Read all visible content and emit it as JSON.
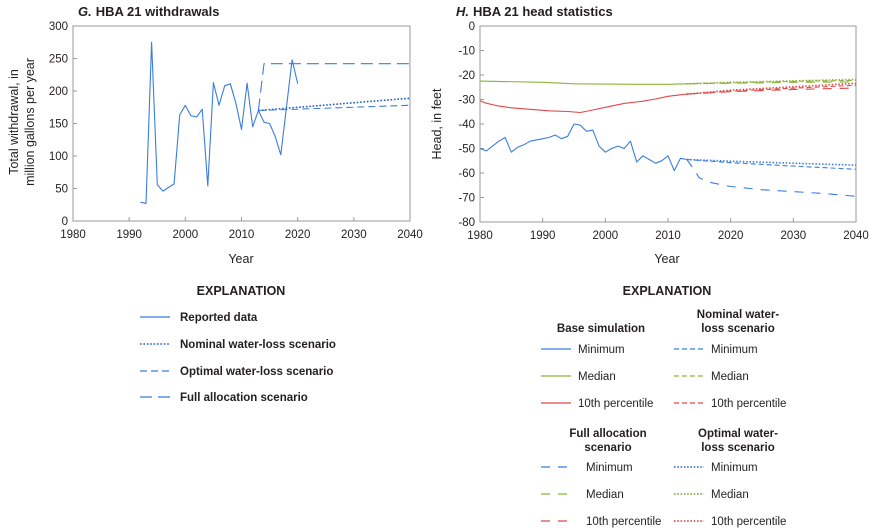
{
  "chart_data": [
    {
      "type": "line",
      "panel_letter": "G.",
      "title": "HBA 21 withdrawals",
      "xlabel": "Year",
      "ylabel_lines": [
        "Total withdrawal, in",
        "million gallons per year"
      ],
      "xlim": [
        1980,
        2040
      ],
      "ylim": [
        0,
        300
      ],
      "x_ticks": [
        1980,
        1990,
        2000,
        2010,
        2020,
        2030,
        2040
      ],
      "y_ticks": [
        0,
        50,
        100,
        150,
        200,
        250,
        300
      ],
      "legend_title": "EXPLANATION",
      "series": [
        {
          "key": "reported",
          "name": "Reported data",
          "color": "#3b7ddd",
          "dash": "",
          "x": [
            1992,
            1993,
            1994,
            1995,
            1996,
            1998,
            1999,
            2000,
            2001,
            2002,
            2003,
            2004,
            2005,
            2006,
            2007,
            2008,
            2009,
            2010,
            2011,
            2012,
            2013,
            2014,
            2015,
            2016,
            2017,
            2019,
            2020
          ],
          "y": [
            29,
            27,
            275,
            56,
            46,
            57,
            163,
            178,
            162,
            160,
            172,
            54,
            213,
            178,
            208,
            211,
            181,
            141,
            212,
            145,
            170,
            152,
            150,
            130,
            102,
            248,
            211
          ]
        },
        {
          "key": "nominal",
          "name": "Nominal water-loss scenario",
          "color": "#1f5fc4",
          "dash": "1.6,1.8",
          "x": [
            2013,
            2040
          ],
          "y": [
            170,
            189
          ]
        },
        {
          "key": "optimal",
          "name": "Optimal water-loss scenario",
          "color": "#3b7ddd",
          "dash": "7,4",
          "x": [
            2013,
            2040
          ],
          "y": [
            170,
            178
          ]
        },
        {
          "key": "full",
          "name": "Full allocation scenario",
          "color": "#3b7ddd",
          "dash": "12,6",
          "x": [
            2013,
            2014,
            2040
          ],
          "y": [
            170,
            242,
            242
          ]
        }
      ]
    },
    {
      "type": "line",
      "panel_letter": "H.",
      "title": "HBA 21 head statistics",
      "xlabel": "Year",
      "ylabel": "Head, in feet",
      "xlim": [
        1980,
        2040
      ],
      "ylim": [
        -80,
        0
      ],
      "x_ticks": [
        1980,
        1990,
        2000,
        2010,
        2020,
        2030,
        2040
      ],
      "y_ticks": [
        0,
        -10,
        -20,
        -30,
        -40,
        -50,
        -60,
        -70,
        -80
      ],
      "legend_title": "EXPLANATION",
      "legend_groups": [
        {
          "title": [
            "Base simulation"
          ],
          "style": "solid",
          "items": [
            "Minimum",
            "Median",
            "10th percentile"
          ]
        },
        {
          "title": [
            "Nominal water-",
            "loss scenario"
          ],
          "style": "short-dash",
          "items": [
            "Minimum",
            "Median",
            "10th percentile"
          ]
        },
        {
          "title": [
            "Full allocation",
            "scenario"
          ],
          "style": "long-dash",
          "items": [
            "Minimum",
            "Median",
            "10th percentile"
          ]
        },
        {
          "title": [
            "Optimal water-",
            "loss scenario"
          ],
          "style": "dotted",
          "items": [
            "Minimum",
            "Median",
            "10th percentile"
          ]
        }
      ],
      "colors": {
        "minimum": "#3b7ddd",
        "median": "#8db33a",
        "percentile10": "#e04848"
      },
      "series": [
        {
          "name": "Base simulation minimum",
          "stat": "minimum",
          "style": "solid",
          "x": [
            1980,
            1981,
            1982,
            1983,
            1984,
            1985,
            1986,
            1987,
            1988,
            1989,
            1990,
            1991,
            1992,
            1993,
            1994,
            1995,
            1996,
            1997,
            1998,
            1999,
            2000,
            2001,
            2002,
            2003,
            2004,
            2005,
            2006,
            2007,
            2008,
            2009,
            2010,
            2011,
            2012,
            2013
          ],
          "y": [
            -50,
            -51,
            -49,
            -47,
            -45.5,
            -51.5,
            -49.5,
            -48.5,
            -47,
            -46.5,
            -46,
            -45.5,
            -44.5,
            -46,
            -45,
            -40,
            -40.5,
            -43,
            -42.5,
            -49,
            -51.5,
            -50,
            -49,
            -50,
            -47,
            -55.5,
            -53,
            -54.5,
            -56,
            -55,
            -53,
            -59,
            -54,
            -54.5
          ]
        },
        {
          "name": "Base simulation median",
          "stat": "median",
          "style": "solid",
          "x": [
            1980,
            1990,
            1995,
            2000,
            2005,
            2010,
            2013
          ],
          "y": [
            -22.5,
            -23,
            -23.6,
            -23.7,
            -23.8,
            -23.8,
            -23.6
          ]
        },
        {
          "name": "Base simulation 10th percentile",
          "stat": "percentile10",
          "style": "solid",
          "x": [
            1980,
            1981,
            1983,
            1985,
            1988,
            1991,
            1994,
            1996,
            1998,
            2000,
            2003,
            2006,
            2008,
            2010,
            2013
          ],
          "y": [
            -30.5,
            -31.5,
            -32.7,
            -33.4,
            -34,
            -34.6,
            -34.9,
            -35.3,
            -34.3,
            -33.2,
            -31.6,
            -30.7,
            -29.8,
            -28.7,
            -27.8
          ]
        },
        {
          "name": "Nominal minimum",
          "stat": "minimum",
          "style": "short-dash",
          "x": [
            2013,
            2020,
            2030,
            2040
          ],
          "y": [
            -54.5,
            -55.8,
            -57.2,
            -58.5
          ]
        },
        {
          "name": "Nominal median",
          "stat": "median",
          "style": "short-dash",
          "x": [
            2013,
            2020,
            2030,
            2040
          ],
          "y": [
            -23.6,
            -23.2,
            -22.6,
            -22.2
          ]
        },
        {
          "name": "Nominal 10th percentile",
          "stat": "percentile10",
          "style": "short-dash",
          "x": [
            2013,
            2020,
            2030,
            2040
          ],
          "y": [
            -27.8,
            -26.6,
            -25.4,
            -24.2
          ]
        },
        {
          "name": "Full allocation minimum",
          "stat": "minimum",
          "style": "long-dash",
          "x": [
            2013,
            2014,
            2015,
            2017,
            2020,
            2025,
            2030,
            2035,
            2040
          ],
          "y": [
            -54.5,
            -58,
            -62,
            -64,
            -65.5,
            -66.8,
            -67.6,
            -68.4,
            -69.5
          ]
        },
        {
          "name": "Full allocation median",
          "stat": "median",
          "style": "long-dash",
          "x": [
            2013,
            2020,
            2030,
            2040
          ],
          "y": [
            -23.6,
            -23.4,
            -23,
            -22.8
          ]
        },
        {
          "name": "Full allocation 10th percentile",
          "stat": "percentile10",
          "style": "long-dash",
          "x": [
            2013,
            2020,
            2030,
            2040
          ],
          "y": [
            -27.8,
            -26.8,
            -25.9,
            -25.3
          ]
        },
        {
          "name": "Optimal minimum",
          "stat": "minimum",
          "style": "dotted",
          "x": [
            2013,
            2020,
            2030,
            2040
          ],
          "y": [
            -54.5,
            -55.2,
            -56,
            -56.8
          ]
        },
        {
          "name": "Optimal median",
          "stat": "median",
          "style": "dotted",
          "x": [
            2013,
            2020,
            2030,
            2040
          ],
          "y": [
            -23.6,
            -23,
            -22.4,
            -21.8
          ]
        },
        {
          "name": "Optimal 10th percentile",
          "stat": "percentile10",
          "style": "dotted",
          "x": [
            2013,
            2020,
            2030,
            2040
          ],
          "y": [
            -27.8,
            -26.2,
            -24.8,
            -23.4
          ]
        }
      ]
    }
  ]
}
